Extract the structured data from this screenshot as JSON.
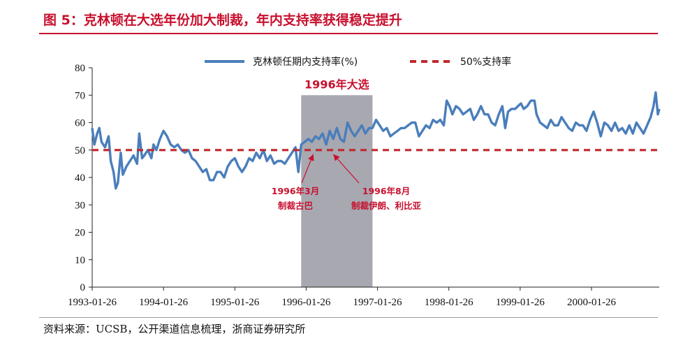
{
  "figure_title": "图 5：克林顿在大选年份加大制裁，年内支持率获得稳定提升",
  "source_note": "资料来源：UCSB，公开渠道信息梳理，浙商证券研究所",
  "chart_data": {
    "type": "line",
    "title": "",
    "xlabel": "",
    "ylabel": "",
    "ylim": [
      0,
      80
    ],
    "yticks": [
      0,
      10,
      20,
      30,
      40,
      50,
      60,
      70,
      80
    ],
    "xlim": [
      1993.07,
      2001.02
    ],
    "xticks": [
      {
        "label": "1993-01-26",
        "x": 1993.07
      },
      {
        "label": "1994-01-26",
        "x": 1994.07
      },
      {
        "label": "1995-01-26",
        "x": 1995.07
      },
      {
        "label": "1996-01-26",
        "x": 1996.07
      },
      {
        "label": "1997-01-26",
        "x": 1997.07
      },
      {
        "label": "1998-01-26",
        "x": 1998.07
      },
      {
        "label": "1999-01-26",
        "x": 1999.07
      },
      {
        "label": "2000-01-26",
        "x": 2000.07
      }
    ],
    "series": [
      {
        "name": "克林顿任期内支持率(%)",
        "color": "#4a7ebb",
        "style": "solid",
        "points": [
          [
            1993.07,
            58
          ],
          [
            1993.1,
            52
          ],
          [
            1993.14,
            56
          ],
          [
            1993.17,
            58
          ],
          [
            1993.2,
            53
          ],
          [
            1993.25,
            51
          ],
          [
            1993.3,
            55
          ],
          [
            1993.33,
            46
          ],
          [
            1993.37,
            42
          ],
          [
            1993.4,
            36
          ],
          [
            1993.43,
            38
          ],
          [
            1993.47,
            49
          ],
          [
            1993.5,
            41
          ],
          [
            1993.55,
            44
          ],
          [
            1993.6,
            46
          ],
          [
            1993.65,
            48
          ],
          [
            1993.7,
            45
          ],
          [
            1993.73,
            56
          ],
          [
            1993.77,
            47
          ],
          [
            1993.8,
            48
          ],
          [
            1993.85,
            50
          ],
          [
            1993.9,
            47
          ],
          [
            1993.93,
            52
          ],
          [
            1993.97,
            50
          ],
          [
            1994.02,
            54
          ],
          [
            1994.07,
            57
          ],
          [
            1994.12,
            55
          ],
          [
            1994.17,
            52
          ],
          [
            1994.22,
            51
          ],
          [
            1994.27,
            52
          ],
          [
            1994.32,
            50
          ],
          [
            1994.37,
            49
          ],
          [
            1994.42,
            50
          ],
          [
            1994.47,
            47
          ],
          [
            1994.52,
            46
          ],
          [
            1994.57,
            44
          ],
          [
            1994.62,
            42
          ],
          [
            1994.67,
            43
          ],
          [
            1994.72,
            39
          ],
          [
            1994.77,
            39
          ],
          [
            1994.82,
            42
          ],
          [
            1994.87,
            42
          ],
          [
            1994.92,
            40
          ],
          [
            1994.97,
            44
          ],
          [
            1995.02,
            46
          ],
          [
            1995.07,
            47
          ],
          [
            1995.12,
            44
          ],
          [
            1995.17,
            42
          ],
          [
            1995.22,
            44
          ],
          [
            1995.27,
            47
          ],
          [
            1995.32,
            46
          ],
          [
            1995.37,
            49
          ],
          [
            1995.42,
            47
          ],
          [
            1995.47,
            50
          ],
          [
            1995.52,
            46
          ],
          [
            1995.57,
            48
          ],
          [
            1995.62,
            45
          ],
          [
            1995.67,
            46
          ],
          [
            1995.72,
            46
          ],
          [
            1995.77,
            45
          ],
          [
            1995.82,
            47
          ],
          [
            1995.87,
            49
          ],
          [
            1995.92,
            51
          ],
          [
            1995.96,
            42
          ],
          [
            1996.0,
            52
          ],
          [
            1996.05,
            53
          ],
          [
            1996.1,
            54
          ],
          [
            1996.15,
            53
          ],
          [
            1996.2,
            55
          ],
          [
            1996.25,
            54
          ],
          [
            1996.3,
            56
          ],
          [
            1996.35,
            52
          ],
          [
            1996.4,
            57
          ],
          [
            1996.45,
            54
          ],
          [
            1996.5,
            58
          ],
          [
            1996.55,
            54
          ],
          [
            1996.6,
            53
          ],
          [
            1996.65,
            60
          ],
          [
            1996.7,
            57
          ],
          [
            1996.75,
            55
          ],
          [
            1996.8,
            57
          ],
          [
            1996.85,
            59
          ],
          [
            1996.9,
            56
          ],
          [
            1996.95,
            58
          ],
          [
            1997.0,
            58
          ],
          [
            1997.05,
            61
          ],
          [
            1997.1,
            59
          ],
          [
            1997.15,
            57
          ],
          [
            1997.2,
            58
          ],
          [
            1997.25,
            55
          ],
          [
            1997.3,
            56
          ],
          [
            1997.35,
            57
          ],
          [
            1997.4,
            58
          ],
          [
            1997.45,
            58
          ],
          [
            1997.5,
            59
          ],
          [
            1997.55,
            60
          ],
          [
            1997.6,
            60
          ],
          [
            1997.65,
            55
          ],
          [
            1997.7,
            57
          ],
          [
            1997.75,
            59
          ],
          [
            1997.8,
            58
          ],
          [
            1997.85,
            61
          ],
          [
            1997.9,
            60
          ],
          [
            1997.95,
            61
          ],
          [
            1998.0,
            59
          ],
          [
            1998.04,
            68
          ],
          [
            1998.08,
            66
          ],
          [
            1998.12,
            63
          ],
          [
            1998.17,
            66
          ],
          [
            1998.22,
            65
          ],
          [
            1998.27,
            63
          ],
          [
            1998.32,
            64
          ],
          [
            1998.37,
            65
          ],
          [
            1998.42,
            61
          ],
          [
            1998.47,
            63
          ],
          [
            1998.52,
            66
          ],
          [
            1998.57,
            63
          ],
          [
            1998.62,
            63
          ],
          [
            1998.67,
            60
          ],
          [
            1998.72,
            59
          ],
          [
            1998.77,
            63
          ],
          [
            1998.82,
            66
          ],
          [
            1998.86,
            58
          ],
          [
            1998.9,
            64
          ],
          [
            1998.95,
            65
          ],
          [
            1999.0,
            65
          ],
          [
            1999.04,
            66
          ],
          [
            1999.08,
            67
          ],
          [
            1999.12,
            65
          ],
          [
            1999.17,
            66
          ],
          [
            1999.22,
            68
          ],
          [
            1999.27,
            68
          ],
          [
            1999.3,
            63
          ],
          [
            1999.35,
            60
          ],
          [
            1999.4,
            59
          ],
          [
            1999.45,
            58
          ],
          [
            1999.5,
            61
          ],
          [
            1999.55,
            59
          ],
          [
            1999.6,
            59
          ],
          [
            1999.65,
            62
          ],
          [
            1999.7,
            60
          ],
          [
            1999.75,
            58
          ],
          [
            1999.8,
            57
          ],
          [
            1999.85,
            60
          ],
          [
            1999.9,
            59
          ],
          [
            1999.95,
            59
          ],
          [
            2000.0,
            57
          ],
          [
            2000.05,
            61
          ],
          [
            2000.1,
            64
          ],
          [
            2000.15,
            60
          ],
          [
            2000.2,
            55
          ],
          [
            2000.25,
            60
          ],
          [
            2000.3,
            59
          ],
          [
            2000.35,
            57
          ],
          [
            2000.4,
            60
          ],
          [
            2000.45,
            57
          ],
          [
            2000.5,
            58
          ],
          [
            2000.55,
            56
          ],
          [
            2000.6,
            59
          ],
          [
            2000.65,
            56
          ],
          [
            2000.7,
            60
          ],
          [
            2000.75,
            58
          ],
          [
            2000.8,
            56
          ],
          [
            2000.85,
            59
          ],
          [
            2000.9,
            62
          ],
          [
            2000.94,
            66
          ],
          [
            2000.97,
            71
          ],
          [
            2001.0,
            63
          ],
          [
            2001.02,
            65
          ]
        ]
      },
      {
        "name": "50%支持率",
        "color": "#c0282d",
        "style": "dashed",
        "points": [
          [
            1993.07,
            50
          ],
          [
            2001.02,
            50
          ]
        ]
      }
    ],
    "legend": {
      "placement": "top"
    },
    "shaded_region": {
      "label": "1996年大选",
      "x_start": 1996.0,
      "x_end": 1997.0,
      "color": "#a3a3ad"
    },
    "annotations": [
      {
        "lines": [
          "1996年3月",
          "制裁古巴"
        ],
        "target": [
          1996.17,
          50
        ]
      },
      {
        "lines": [
          "1996年8月",
          "制裁伊朗、利比亚"
        ],
        "target": [
          1996.45,
          50
        ]
      }
    ]
  }
}
